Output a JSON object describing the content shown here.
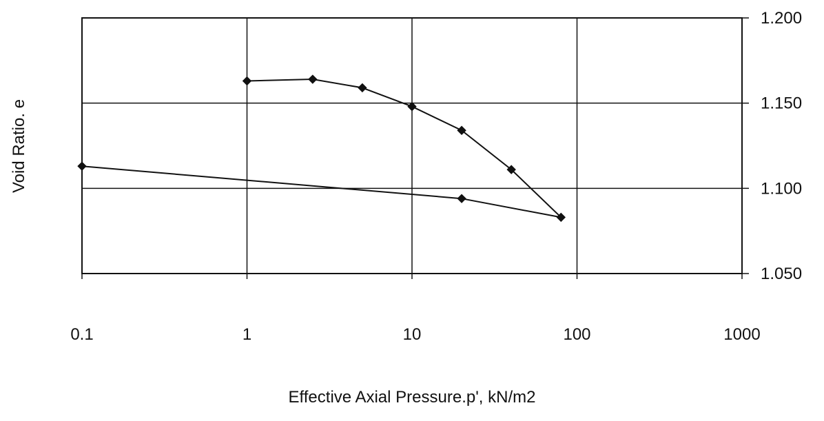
{
  "chart_data": {
    "type": "line",
    "title": "",
    "xlabel": "Effective Axial Pressure.p', kN/m2",
    "ylabel": "Void Ratio. e",
    "x_scale": "log",
    "xlim": [
      0.1,
      1000
    ],
    "ylim": [
      1.05,
      1.2
    ],
    "x_ticks": [
      {
        "value": 0.1,
        "label": "0.1"
      },
      {
        "value": 1,
        "label": "1"
      },
      {
        "value": 10,
        "label": "10"
      },
      {
        "value": 100,
        "label": "100"
      },
      {
        "value": 1000,
        "label": "1000"
      }
    ],
    "y_ticks": [
      {
        "value": 1.05,
        "label": "1.050"
      },
      {
        "value": 1.1,
        "label": "1.100"
      },
      {
        "value": 1.15,
        "label": "1.150"
      },
      {
        "value": 1.2,
        "label": "1.200"
      }
    ],
    "y_axis_side": "right",
    "grid": true,
    "legend": "none",
    "colors": {
      "line": "#111111",
      "marker": "#111111",
      "grid": "#111111",
      "frame": "#111111"
    },
    "series": [
      {
        "x": [
          1.0,
          2.5,
          5.0,
          10.0,
          20.0,
          40.0,
          80.0,
          20.0,
          0.1
        ],
        "y": [
          1.163,
          1.164,
          1.159,
          1.148,
          1.134,
          1.111,
          1.083,
          1.094,
          1.113
        ]
      }
    ]
  }
}
